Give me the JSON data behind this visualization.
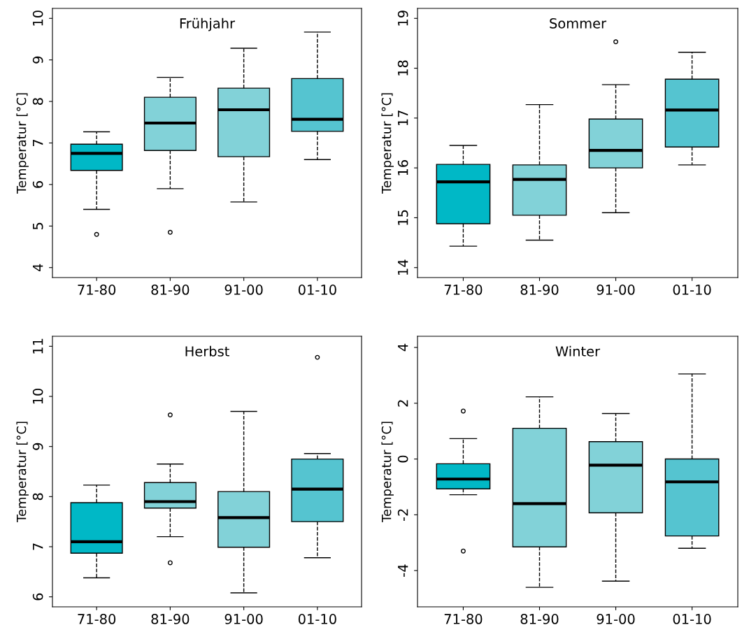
{
  "chart_data": [
    {
      "type": "box",
      "title": "Frühjahr",
      "ylabel": "Temperatur [°C]",
      "categories": [
        "71-80",
        "81-90",
        "91-00",
        "01-10"
      ],
      "colors": [
        "#00b8c6",
        "#82d2d8",
        "#82d2d8",
        "#55c4d0"
      ],
      "ylim": [
        3.76,
        10.24
      ],
      "yticks": [
        4,
        5,
        6,
        7,
        8,
        9,
        10
      ],
      "grid": false,
      "line_style": "dashed",
      "marker": "circle",
      "boxes": [
        {
          "low": 5.4,
          "q1": 6.34,
          "median": 6.75,
          "q3": 6.97,
          "high": 7.27,
          "outliers": [
            4.8
          ]
        },
        {
          "low": 5.9,
          "q1": 6.82,
          "median": 7.48,
          "q3": 8.1,
          "high": 8.58,
          "outliers": [
            4.85
          ]
        },
        {
          "low": 5.58,
          "q1": 6.67,
          "median": 7.8,
          "q3": 8.32,
          "high": 9.28
        },
        {
          "low": 6.6,
          "q1": 7.28,
          "median": 7.57,
          "q3": 8.55,
          "high": 9.67
        }
      ]
    },
    {
      "type": "box",
      "title": "Sommer",
      "ylabel": "Temperatur [°C]",
      "categories": [
        "71-80",
        "81-90",
        "91-00",
        "01-10"
      ],
      "colors": [
        "#00b8c6",
        "#82d2d8",
        "#82d2d8",
        "#55c4d0"
      ],
      "ylim": [
        13.8,
        19.2
      ],
      "yticks": [
        14,
        15,
        16,
        17,
        18,
        19
      ],
      "grid": false,
      "line_style": "dashed",
      "marker": "circle",
      "boxes": [
        {
          "low": 14.43,
          "q1": 14.88,
          "median": 15.72,
          "q3": 16.07,
          "high": 16.45
        },
        {
          "low": 14.55,
          "q1": 15.05,
          "median": 15.77,
          "q3": 16.06,
          "high": 17.27
        },
        {
          "low": 15.1,
          "q1": 16.0,
          "median": 16.35,
          "q3": 16.98,
          "high": 17.67,
          "outliers": [
            18.53
          ]
        },
        {
          "low": 16.06,
          "q1": 16.42,
          "median": 17.16,
          "q3": 17.78,
          "high": 18.32
        }
      ]
    },
    {
      "type": "box",
      "title": "Herbst",
      "ylabel": "Temperatur [°C]",
      "categories": [
        "71-80",
        "81-90",
        "91-00",
        "01-10"
      ],
      "colors": [
        "#00b8c6",
        "#82d2d8",
        "#82d2d8",
        "#55c4d0"
      ],
      "ylim": [
        5.8,
        11.2
      ],
      "yticks": [
        6,
        7,
        8,
        9,
        10,
        11
      ],
      "grid": false,
      "line_style": "dashed",
      "marker": "circle",
      "boxes": [
        {
          "low": 6.38,
          "q1": 6.87,
          "median": 7.1,
          "q3": 7.88,
          "high": 8.23
        },
        {
          "low": 7.2,
          "q1": 7.77,
          "median": 7.9,
          "q3": 8.28,
          "high": 8.65,
          "outliers": [
            9.63,
            6.68
          ]
        },
        {
          "low": 6.08,
          "q1": 6.99,
          "median": 7.58,
          "q3": 8.1,
          "high": 9.7
        },
        {
          "low": 6.78,
          "q1": 7.5,
          "median": 8.15,
          "q3": 8.75,
          "high": 8.86,
          "outliers": [
            10.78
          ]
        }
      ]
    },
    {
      "type": "box",
      "title": "Winter",
      "ylabel": "Temperatur [°C]",
      "categories": [
        "71-80",
        "81-90",
        "91-00",
        "01-10"
      ],
      "colors": [
        "#00b8c6",
        "#82d2d8",
        "#82d2d8",
        "#55c4d0"
      ],
      "ylim": [
        -5.3,
        4.4
      ],
      "yticks": [
        {
          "value": -4,
          "label": "-4"
        },
        {
          "value": -2,
          "label": "-2"
        },
        0,
        2,
        4
      ],
      "grid": false,
      "line_style": "dashed",
      "marker": "circle",
      "boxes": [
        {
          "low": -1.28,
          "q1": -1.07,
          "median": -0.72,
          "q3": -0.17,
          "high": 0.73,
          "outliers": [
            1.72,
            -3.3
          ]
        },
        {
          "low": -4.6,
          "q1": -3.15,
          "median": -1.6,
          "q3": 1.1,
          "high": 2.23
        },
        {
          "low": -4.38,
          "q1": -1.93,
          "median": -0.22,
          "q3": 0.62,
          "high": 1.63
        },
        {
          "low": -3.2,
          "q1": -2.76,
          "median": -0.82,
          "q3": 0.0,
          "high": 3.05
        }
      ]
    }
  ]
}
